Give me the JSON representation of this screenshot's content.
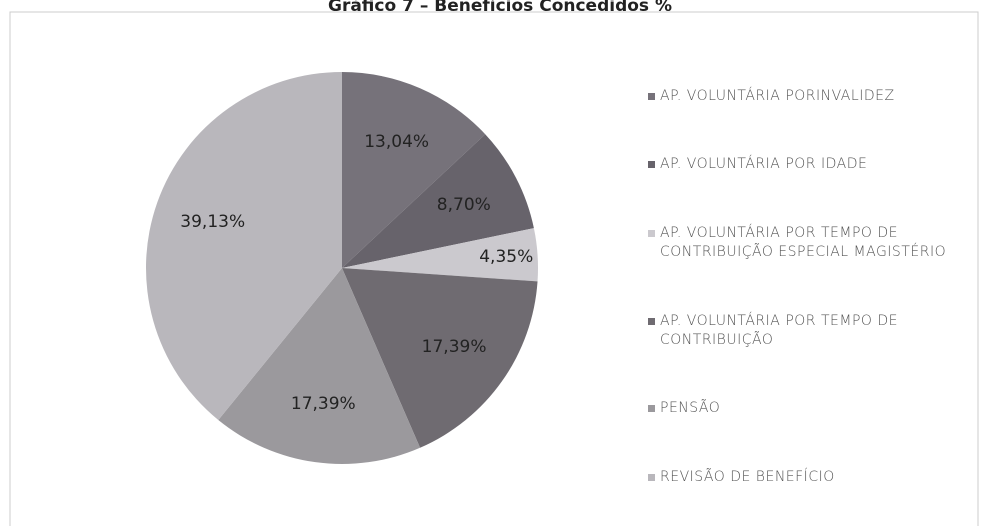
{
  "chart_data": {
    "type": "pie",
    "title": "Gráfico 7 – Benefícios Concedidos %",
    "categories": [
      "AP. VOLUNTÁRIA PORINVALIDEZ",
      "AP. VOLUNTÁRIA POR IDADE",
      "AP. VOLUNTÁRIA POR TEMPO DE CONTRIBUIÇÃO ESPECIAL MAGISTÉRIO",
      "AP. VOLUNTÁRIA POR TEMPO DE CONTRIBUIÇÃO",
      "PENSÃO",
      "REVISÃO DE BENEFÍCIO"
    ],
    "values": [
      13.04,
      8.7,
      4.35,
      17.39,
      17.39,
      39.13
    ],
    "value_labels": [
      "13,04%",
      "8,70%",
      "4,35%",
      "17,39%",
      "17,39%",
      "39,13%"
    ],
    "colors": [
      "#76727a",
      "#67636b",
      "#cbc9ce",
      "#6f6b71",
      "#9b999d",
      "#b9b7bc"
    ],
    "legend": "right"
  }
}
